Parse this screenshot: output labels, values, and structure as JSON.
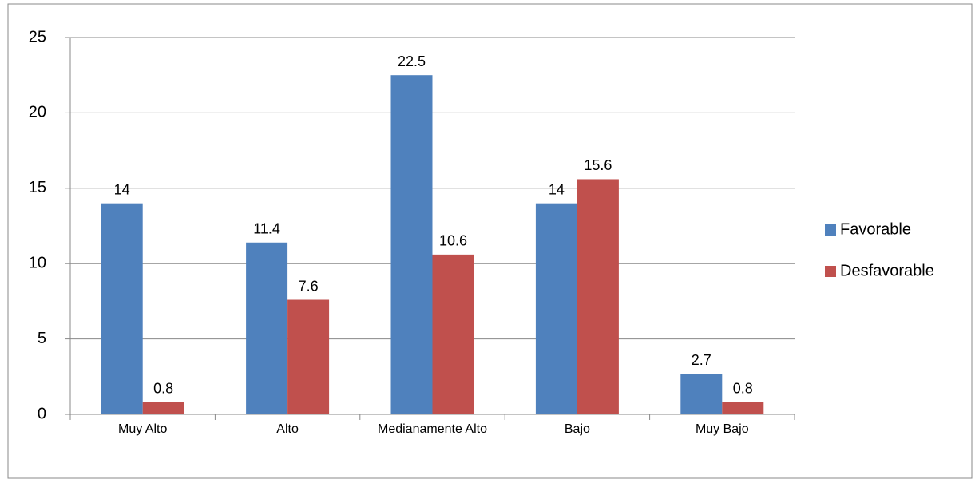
{
  "chart_data": {
    "type": "bar",
    "categories": [
      "Muy Alto",
      "Alto",
      "Medianamente Alto",
      "Bajo",
      "Muy Bajo"
    ],
    "series": [
      {
        "name": "Favorable",
        "color": "#4f81bd",
        "values": [
          14,
          11.4,
          22.5,
          14,
          2.7
        ]
      },
      {
        "name": "Desfavorable",
        "color": "#c0504d",
        "values": [
          0.8,
          7.6,
          10.6,
          15.6,
          0.8
        ]
      }
    ],
    "ylim": [
      0,
      25
    ],
    "yticks": [
      0,
      5,
      10,
      15,
      20,
      25
    ],
    "grid": true,
    "legend": "right"
  }
}
